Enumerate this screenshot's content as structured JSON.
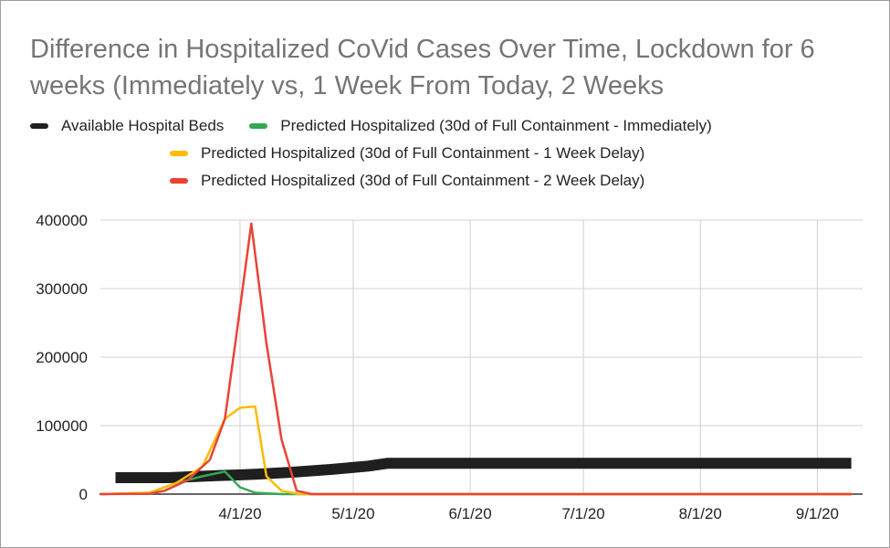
{
  "chart_data": {
    "type": "line",
    "title": "Difference in Hospitalized CoVid Cases Over Time, Lockdown for 6 weeks (Immediately vs, 1 Week From Today, 2 Weeks",
    "xlabel": "",
    "ylabel": "",
    "ylim": [
      0,
      400000
    ],
    "yticks": [
      0,
      100000,
      200000,
      300000,
      400000
    ],
    "ytick_labels": [
      "0",
      "100000",
      "200000",
      "300000",
      "400000"
    ],
    "x_unit": "days since 3/1/20",
    "xlim": [
      -6,
      196
    ],
    "xticks": [
      31,
      61,
      92,
      122,
      153,
      184
    ],
    "xtick_labels": [
      "4/1/20",
      "5/1/20",
      "6/1/20",
      "7/1/20",
      "8/1/20",
      "9/1/20"
    ],
    "grid": true,
    "legend_position": "top",
    "series": [
      {
        "name": "Available Hospital Beds",
        "color": "#1f1f1f",
        "x": [
          -2,
          12,
          25,
          35,
          45,
          55,
          65,
          70,
          193
        ],
        "values": [
          24000,
          24000,
          27000,
          29000,
          32000,
          36000,
          41000,
          45000,
          45000
        ]
      },
      {
        "name": "Predicted Hospitalized  (30d of Full Containment - Immediately)",
        "color": "#34a853",
        "x": [
          -6,
          7,
          14,
          21,
          27,
          31,
          35,
          42,
          193
        ],
        "values": [
          0,
          2000,
          16000,
          26000,
          33000,
          10000,
          2000,
          0,
          0
        ]
      },
      {
        "name": "Predicted Hospitalized  (30d of Full Containment - 1 Week Delay)",
        "color": "#fbbc04",
        "x": [
          -6,
          7,
          14,
          21,
          27,
          31,
          35,
          38,
          42,
          46,
          50,
          193
        ],
        "values": [
          0,
          2000,
          16000,
          40000,
          110000,
          126000,
          128000,
          26000,
          5000,
          500,
          0,
          0
        ]
      },
      {
        "name": "Predicted Hospitalized  (30d of Full Containment - 2 Week Delay)",
        "color": "#ea4335",
        "x": [
          -6,
          7,
          11,
          17,
          23,
          27,
          30,
          34,
          38,
          42,
          46,
          50,
          193
        ],
        "values": [
          0,
          500,
          5000,
          20000,
          50000,
          110000,
          230000,
          395000,
          220000,
          80000,
          5000,
          0,
          0
        ]
      }
    ]
  }
}
